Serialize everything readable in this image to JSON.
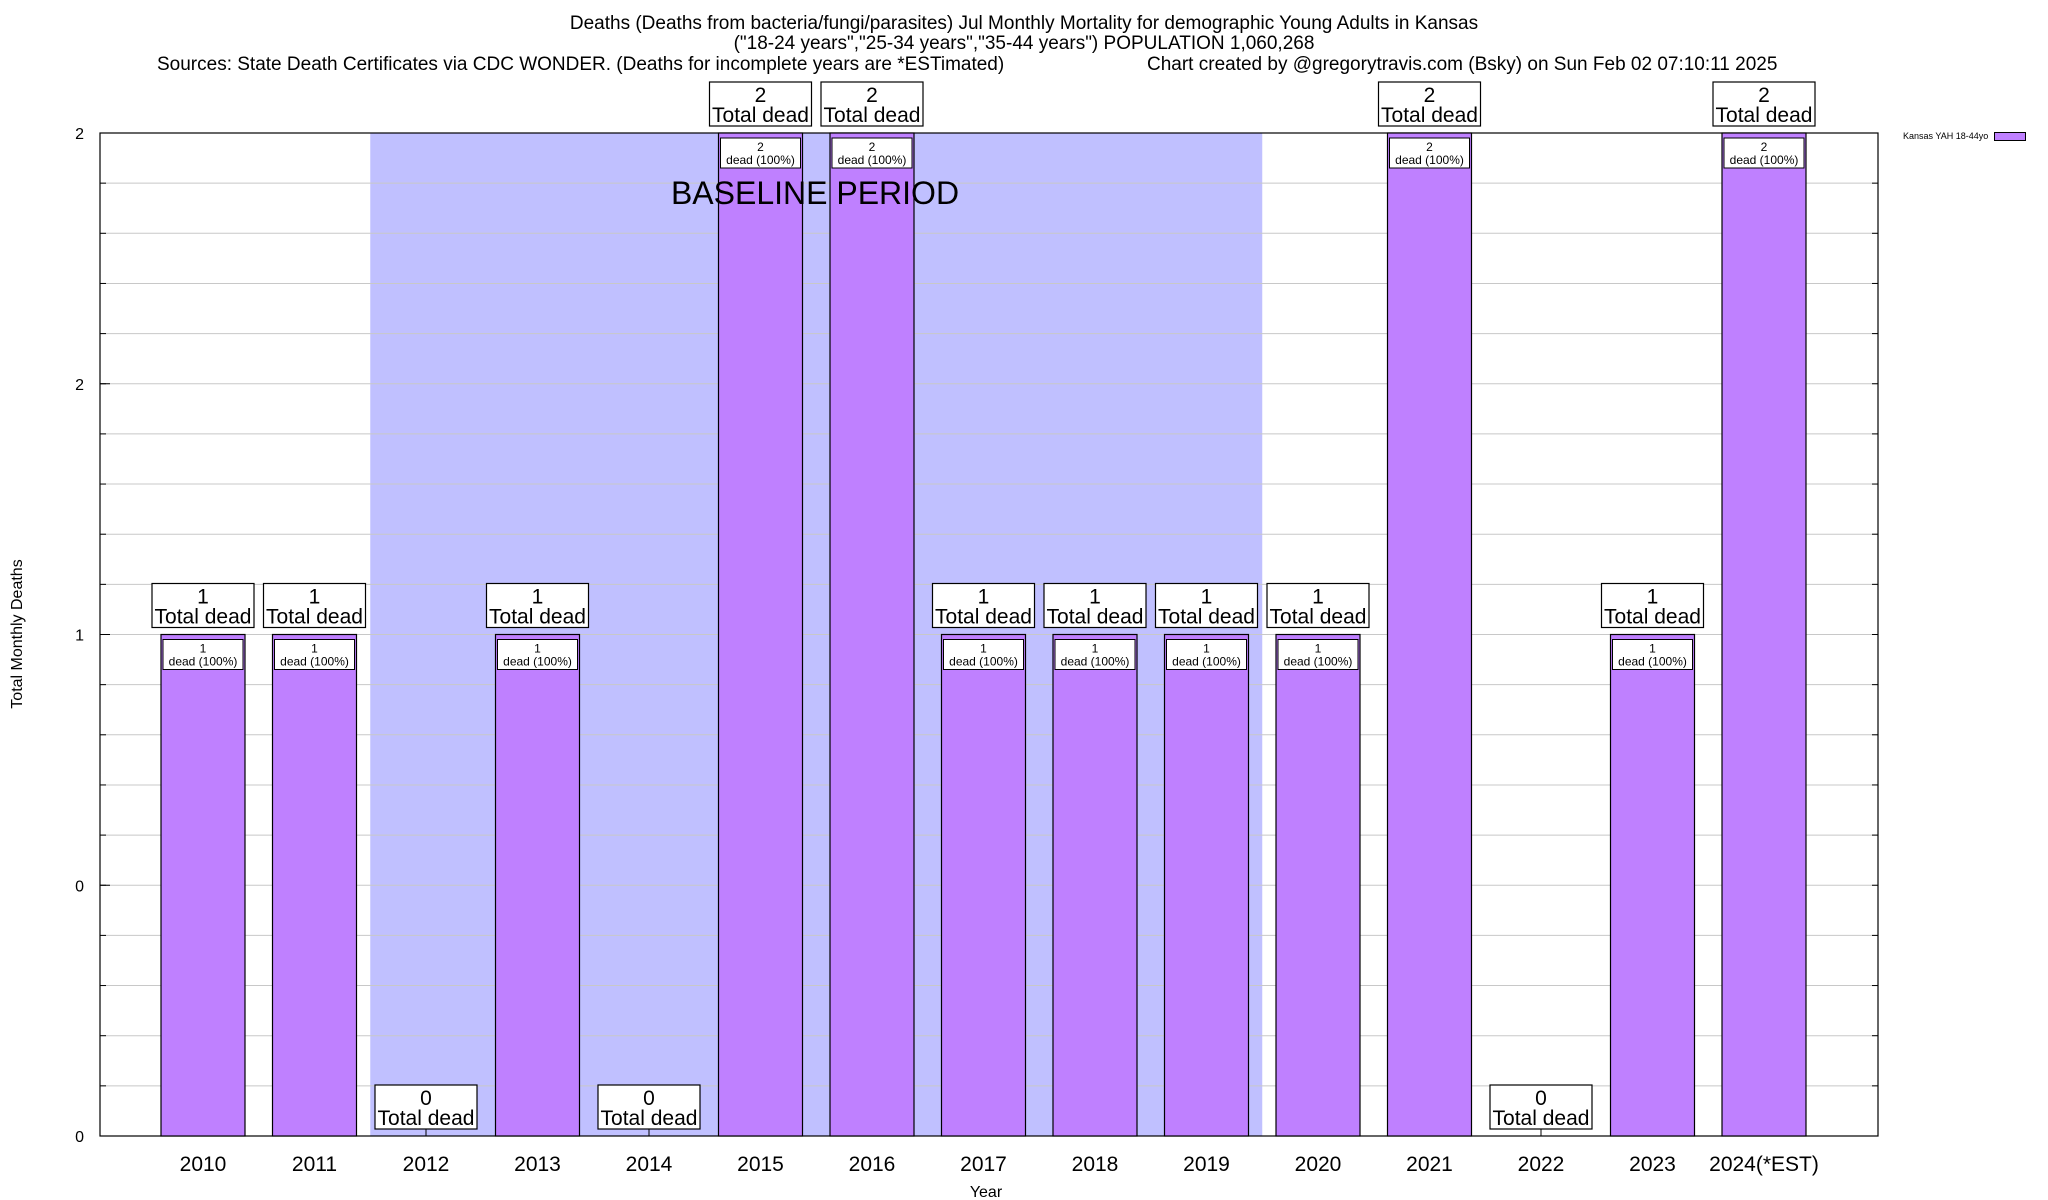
{
  "header": {
    "title_line1": "Deaths (Deaths from bacteria/fungi/parasites) Jul Monthly Mortality for demographic Young Adults in Kansas",
    "title_line2": "(\"18-24 years\",\"25-34 years\",\"35-44 years\") POPULATION 1,060,268",
    "sources": "Sources: State Death Certificates via CDC WONDER. (Deaths for incomplete years are *ESTimated)",
    "credit": "Chart created by @gregorytravis.com (Bsky) on Sun Feb 02 07:10:11 2025"
  },
  "legend": {
    "label": "Kansas YAH 18-44yo",
    "color": "#bf80ff"
  },
  "chart_data": {
    "type": "bar",
    "title": "Deaths (Deaths from bacteria/fungi/parasites) Jul Monthly Mortality for demographic Young Adults in Kansas",
    "xlabel": "Year",
    "ylabel": "Total Monthly Deaths",
    "categories": [
      "2010",
      "2011",
      "2012",
      "2013",
      "2014",
      "2015",
      "2016",
      "2017",
      "2018",
      "2019",
      "2020",
      "2021",
      "2022",
      "2023",
      "2024(*EST)"
    ],
    "series": [
      {
        "name": "Kansas YAH 18-44yo",
        "values": [
          1,
          1,
          0,
          1,
          0,
          2,
          2,
          1,
          1,
          1,
          1,
          2,
          0,
          1,
          2
        ]
      }
    ],
    "ylim": [
      0,
      2
    ],
    "y_tick_labels": [
      "0",
      "0",
      "1",
      "2",
      "2"
    ],
    "y_tick_values": [
      0,
      0.5,
      1,
      1.5,
      2
    ],
    "baseline_period": {
      "label": "BASELINE PERIOD",
      "from": "2012",
      "to": "2019"
    },
    "bar_color": "#bf80ff",
    "baseline_color": "#c0c0ff",
    "total_label_suffix": "Total dead",
    "bar_label_suffix": "dead (100%)",
    "grid": true,
    "legend_position": "top-right"
  }
}
